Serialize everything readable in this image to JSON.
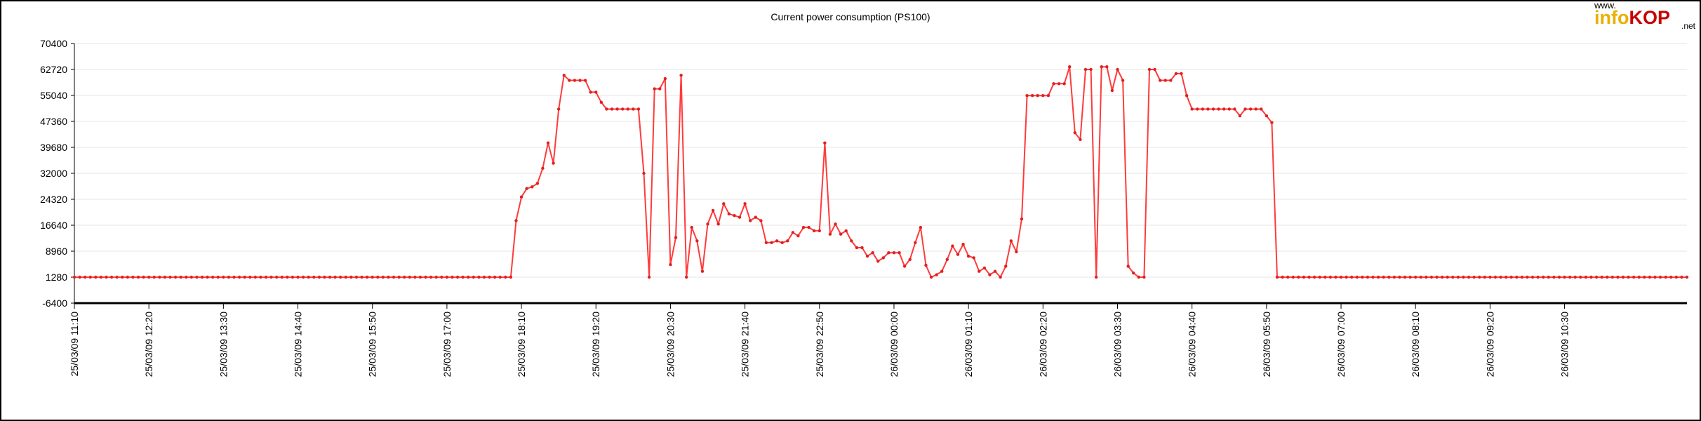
{
  "logo": {
    "www": "www.",
    "brand_a": "info",
    "brand_b": "KOP",
    "tld": ".net"
  },
  "chart_data": {
    "type": "line",
    "title": "Current power consumption (PS100)",
    "xlabel": "",
    "ylabel": "",
    "ylim": [
      -6400,
      70400
    ],
    "yticks": [
      -6400,
      1280,
      8960,
      16640,
      24320,
      32000,
      39680,
      47360,
      55040,
      62720,
      70400
    ],
    "ytick_labels": [
      "-6400",
      "1280",
      "8960",
      "16640",
      "24320",
      "32000",
      "39680",
      "47360",
      "55040",
      "62720",
      "70400"
    ],
    "x_start": "25/03/09 11:10",
    "x_step_minutes": 5,
    "xtick_labels": [
      "25/03/09 11:10",
      "25/03/09 12:20",
      "25/03/09 13:30",
      "25/03/09 14:40",
      "25/03/09 15:50",
      "25/03/09 17:00",
      "25/03/09 18:10",
      "25/03/09 19:20",
      "25/03/09 20:30",
      "25/03/09 21:40",
      "25/03/09 22:50",
      "26/03/09 00:00",
      "26/03/09 01:10",
      "26/03/09 02:20",
      "26/03/09 03:30",
      "26/03/09 04:40",
      "26/03/09 05:50",
      "26/03/09 07:00",
      "26/03/09 08:10",
      "26/03/09 09:20",
      "26/03/09 10:30"
    ],
    "grid": true,
    "colors": {
      "line": "#ff3b3b",
      "marker": "#e02020",
      "grid": "#e6e6e6",
      "axis": "#000000"
    },
    "series": [
      {
        "values": [
          1280,
          1280,
          1280,
          1280,
          1280,
          1280,
          1280,
          1280,
          1280,
          1280,
          1280,
          1280,
          1280,
          1280,
          1280,
          1280,
          1280,
          1280,
          1280,
          1280,
          1280,
          1280,
          1280,
          1280,
          1280,
          1280,
          1280,
          1280,
          1280,
          1280,
          1280,
          1280,
          1280,
          1280,
          1280,
          1280,
          1280,
          1280,
          1280,
          1280,
          1280,
          1280,
          1280,
          1280,
          1280,
          1280,
          1280,
          1280,
          1280,
          1280,
          1280,
          1280,
          1280,
          1280,
          1280,
          1280,
          1280,
          1280,
          1280,
          1280,
          1280,
          1280,
          1280,
          1280,
          1280,
          1280,
          1280,
          1280,
          1280,
          1280,
          1280,
          1280,
          1280,
          1280,
          1280,
          1280,
          1280,
          1280,
          1280,
          1280,
          1280,
          1280,
          1280,
          18000,
          25000,
          27500,
          28000,
          29000,
          33500,
          41000,
          35000,
          51000,
          61000,
          59500,
          59500,
          59500,
          59500,
          56000,
          56000,
          53000,
          51000,
          51000,
          51000,
          51000,
          51000,
          51000,
          51000,
          32000,
          1280,
          57000,
          57000,
          60000,
          5000,
          13000,
          61000,
          1280,
          16000,
          12000,
          3000,
          17000,
          21000,
          17000,
          23000,
          20000,
          19500,
          19000,
          23000,
          18000,
          19000,
          18000,
          11500,
          11500,
          12000,
          11500,
          12000,
          14500,
          13500,
          16000,
          16000,
          15000,
          15000,
          41000,
          14000,
          17000,
          14000,
          15000,
          12000,
          10000,
          10000,
          7500,
          8500,
          6000,
          7000,
          8500,
          8500,
          8500,
          4500,
          6500,
          11500,
          16000,
          4800,
          1280,
          2000,
          3000,
          6500,
          10500,
          8000,
          11000,
          7500,
          7000,
          3000,
          4000,
          2000,
          3000,
          1280,
          4500,
          12000,
          8800,
          18500,
          55000,
          55000,
          55000,
          55000,
          55000,
          58500,
          58500,
          58500,
          63500,
          44000,
          42000,
          62720,
          62720,
          1280,
          63500,
          63500,
          56500,
          62720,
          59500,
          4500,
          2500,
          1280,
          1280,
          62720,
          62720,
          59500,
          59500,
          59500,
          61500,
          61500,
          55000,
          51000,
          51000,
          51000,
          51000,
          51000,
          51000,
          51000,
          51000,
          51000,
          49000,
          51000,
          51000,
          51000,
          51000,
          49000,
          47000,
          1280,
          1280,
          1280,
          1280,
          1280,
          1280,
          1280,
          1280,
          1280,
          1280,
          1280,
          1280,
          1280,
          1280,
          1280,
          1280,
          1280,
          1280,
          1280,
          1280,
          1280,
          1280,
          1280,
          1280,
          1280,
          1280,
          1280,
          1280,
          1280,
          1280,
          1280,
          1280,
          1280,
          1280,
          1280,
          1280,
          1280,
          1280,
          1280,
          1280,
          1280,
          1280,
          1280,
          1280,
          1280,
          1280,
          1280,
          1280,
          1280,
          1280,
          1280,
          1280,
          1280,
          1280,
          1280,
          1280,
          1280,
          1280,
          1280,
          1280,
          1280,
          1280,
          1280,
          1280,
          1280,
          1280,
          1280,
          1280,
          1280,
          1280,
          1280,
          1280,
          1280,
          1280,
          1280,
          1280,
          1280,
          1280
        ]
      }
    ]
  }
}
